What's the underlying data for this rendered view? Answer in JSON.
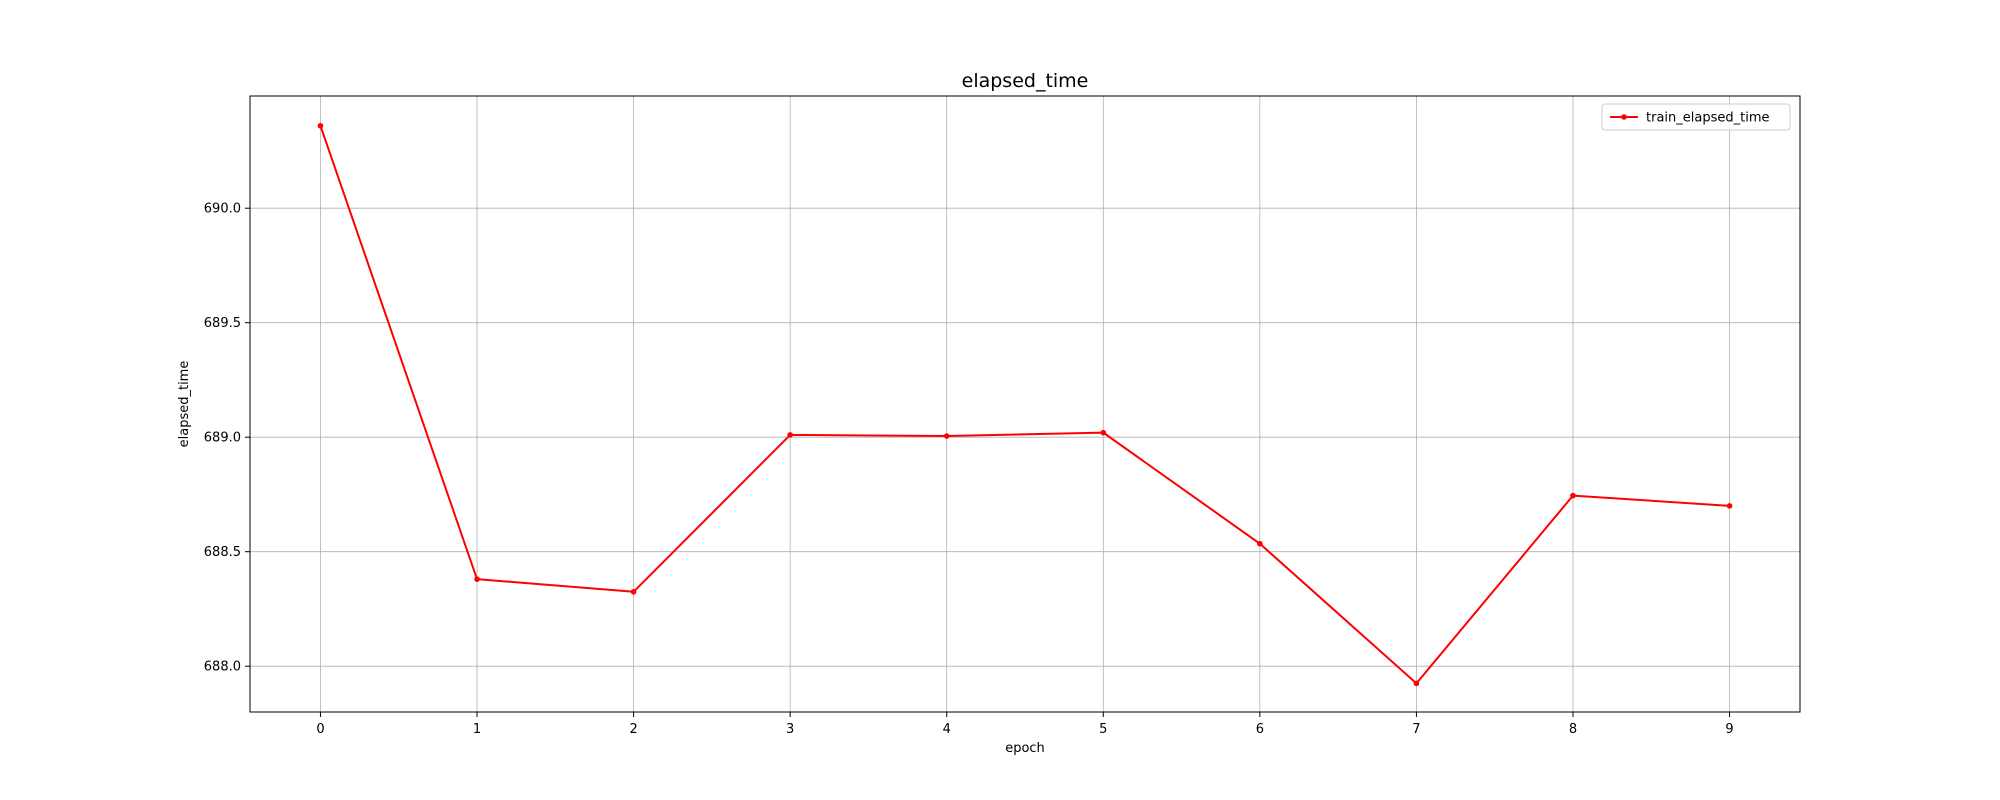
{
  "chart_data": {
    "type": "line",
    "title": "elapsed_time",
    "xlabel": "epoch",
    "ylabel": "elapsed_time",
    "x": [
      0,
      1,
      2,
      3,
      4,
      5,
      6,
      7,
      8,
      9
    ],
    "xticks": [
      0,
      1,
      2,
      3,
      4,
      5,
      6,
      7,
      8,
      9
    ],
    "yticks": [
      "688.0",
      "688.5",
      "689.0",
      "689.5",
      "690.0"
    ],
    "xlim": [
      -0.45,
      9.45
    ],
    "ylim": [
      687.8,
      690.49
    ],
    "grid": true,
    "legend_position": "top-right",
    "series": [
      {
        "name": "train_elapsed_time",
        "color": "#ff0000",
        "marker": "dot",
        "values": [
          690.36,
          688.38,
          688.325,
          689.01,
          689.005,
          689.02,
          688.535,
          687.925,
          688.745,
          688.7
        ]
      }
    ]
  }
}
